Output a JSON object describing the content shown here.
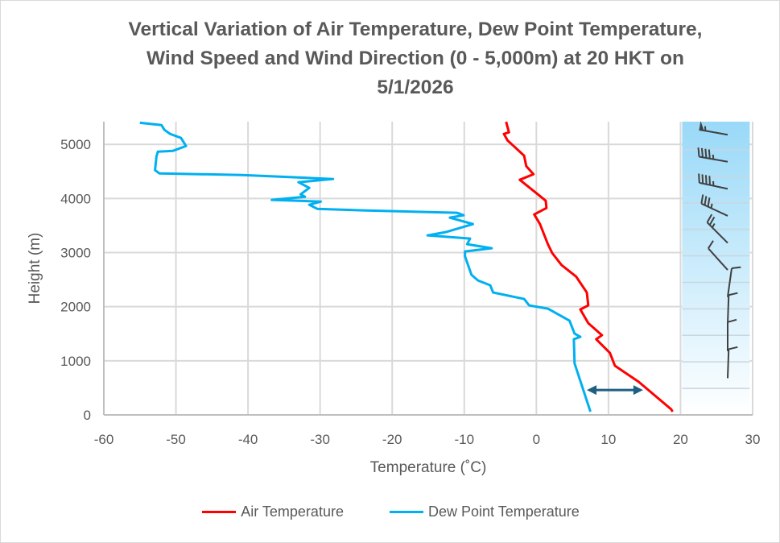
{
  "chart_data": {
    "type": "line",
    "title": "Vertical Variation of Air Temperature, Dew Point Temperature, Wind Speed and Wind Direction (0 - 5,000m) at 20 HKT on 5/1/2026",
    "title_lines": [
      "Vertical Variation of Air Temperature, Dew Point Temperature,",
      "Wind Speed and Wind Direction (0 - 5,000m) at 20 HKT on",
      "5/1/2026"
    ],
    "xlabel": "Temperature (˚C)",
    "ylabel": "Height (m)",
    "xlim": [
      -60,
      30
    ],
    "ylim": [
      0,
      5420
    ],
    "xticks": [
      -60,
      -50,
      -40,
      -30,
      -20,
      -10,
      0,
      10,
      20,
      30
    ],
    "yticks": [
      0,
      1000,
      2000,
      3000,
      4000,
      5000
    ],
    "grid": true,
    "legend_position": "bottom",
    "series": [
      {
        "name": "Air Temperature",
        "color": "#ff0000",
        "points": [
          [
            18.9,
            60
          ],
          [
            18.7,
            104
          ],
          [
            14.2,
            610
          ],
          [
            10.9,
            908
          ],
          [
            10.2,
            1146
          ],
          [
            8.3,
            1399
          ],
          [
            9.1,
            1473
          ],
          [
            7.2,
            1696
          ],
          [
            6.1,
            1949
          ],
          [
            7.2,
            2024
          ],
          [
            7.0,
            2262
          ],
          [
            5.5,
            2559
          ],
          [
            3.5,
            2768
          ],
          [
            2.2,
            2991
          ],
          [
            1.6,
            3155
          ],
          [
            0.5,
            3527
          ],
          [
            -0.3,
            3705
          ],
          [
            1.4,
            3824
          ],
          [
            1.3,
            3958
          ],
          [
            0.2,
            4077
          ],
          [
            -2.3,
            4345
          ],
          [
            -0.4,
            4449
          ],
          [
            -1.4,
            4598
          ],
          [
            -1.7,
            4791
          ],
          [
            -4.0,
            5074
          ],
          [
            -4.5,
            5193
          ],
          [
            -3.8,
            5223
          ],
          [
            -4.2,
            5417
          ]
        ]
      },
      {
        "name": "Dew Point Temperature",
        "color": "#00b0f0",
        "points": [
          [
            7.5,
            60
          ],
          [
            6.4,
            506
          ],
          [
            5.3,
            952
          ],
          [
            5.2,
            1399
          ],
          [
            6.1,
            1443
          ],
          [
            5.3,
            1503
          ],
          [
            4.6,
            1741
          ],
          [
            1.6,
            1964
          ],
          [
            -1.0,
            2024
          ],
          [
            -1.7,
            2143
          ],
          [
            -6.0,
            2262
          ],
          [
            -6.4,
            2396
          ],
          [
            -8.1,
            2485
          ],
          [
            -9.0,
            2589
          ],
          [
            -9.9,
            2931
          ],
          [
            -9.9,
            3021
          ],
          [
            -6.2,
            3080
          ],
          [
            -9.6,
            3155
          ],
          [
            -9.2,
            3259
          ],
          [
            -15.1,
            3318
          ],
          [
            -12.6,
            3378
          ],
          [
            -8.8,
            3527
          ],
          [
            -12.0,
            3646
          ],
          [
            -10.1,
            3690
          ],
          [
            -11.0,
            3735
          ],
          [
            -24.1,
            3780
          ],
          [
            -30.4,
            3809
          ],
          [
            -31.5,
            3884
          ],
          [
            -29.9,
            3943
          ],
          [
            -36.7,
            3973
          ],
          [
            -32.1,
            4032
          ],
          [
            -32.7,
            4077
          ],
          [
            -31.5,
            4196
          ],
          [
            -33.0,
            4300
          ],
          [
            -28.2,
            4360
          ],
          [
            -40.8,
            4434
          ],
          [
            -52.3,
            4464
          ],
          [
            -52.9,
            4524
          ],
          [
            -52.7,
            4776
          ],
          [
            -52.5,
            4866
          ],
          [
            -50.4,
            4881
          ],
          [
            -48.6,
            4970
          ],
          [
            -49.3,
            5119
          ],
          [
            -50.8,
            5193
          ],
          [
            -51.6,
            5268
          ],
          [
            -52.0,
            5357
          ],
          [
            -55.0,
            5400
          ]
        ]
      }
    ],
    "annotation_arrow": {
      "from": [
        7.0,
        460
      ],
      "to": [
        14.8,
        460
      ],
      "color": "#1f5f82",
      "double_headed": true
    },
    "wind_panel": {
      "x_range": [
        20,
        29.6
      ],
      "gradient_top": "#99d9f8",
      "gradient_bottom": "#ffffff",
      "barbs": [
        {
          "height": 5000,
          "direction_deg": 280,
          "speed_kt": 55
        },
        {
          "height": 4500,
          "direction_deg": 280,
          "speed_kt": 45
        },
        {
          "height": 4000,
          "direction_deg": 282,
          "speed_kt": 45
        },
        {
          "height": 3500,
          "direction_deg": 295,
          "speed_kt": 35
        },
        {
          "height": 3000,
          "direction_deg": 315,
          "speed_kt": 25
        },
        {
          "height": 2500,
          "direction_deg": 318,
          "speed_kt": 10
        },
        {
          "height": 2000,
          "direction_deg": 8,
          "speed_kt": 10
        },
        {
          "height": 1500,
          "direction_deg": 2,
          "speed_kt": 10
        },
        {
          "height": 1000,
          "direction_deg": 0,
          "speed_kt": 10
        },
        {
          "height": 500,
          "direction_deg": 2,
          "speed_kt": 10
        }
      ]
    }
  }
}
